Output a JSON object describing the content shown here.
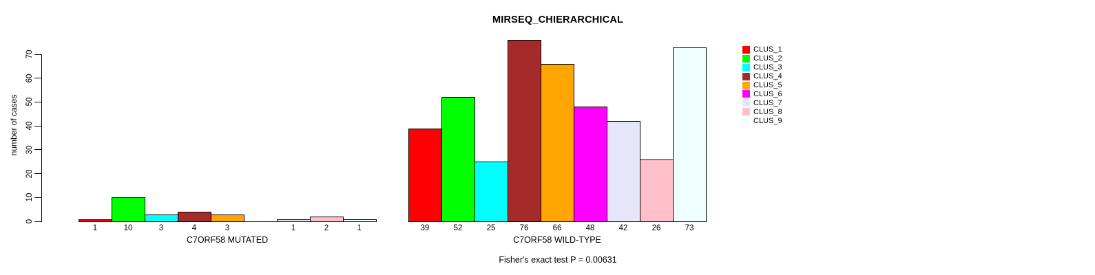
{
  "chart_data": {
    "type": "bar",
    "title": "MIRSEQ_CHIERARCHICAL",
    "ylabel": "number of cases",
    "ylim": [
      0,
      70
    ],
    "yticks": [
      0,
      10,
      20,
      30,
      40,
      50,
      60,
      70
    ],
    "grid": false,
    "legend_position": "top-right",
    "legend": [
      {
        "label": "CLUS_1",
        "color": "#FF0000"
      },
      {
        "label": "CLUS_2",
        "color": "#00FF00"
      },
      {
        "label": "CLUS_3",
        "color": "#00FFFF"
      },
      {
        "label": "CLUS_4",
        "color": "#A52A2A"
      },
      {
        "label": "CLUS_5",
        "color": "#FFA500"
      },
      {
        "label": "CLUS_6",
        "color": "#FF00FF"
      },
      {
        "label": "CLUS_7",
        "color": "#E6E6FA"
      },
      {
        "label": "CLUS_8",
        "color": "#FFC0CB"
      },
      {
        "label": "CLUS_9",
        "color": "#F0FFFF"
      }
    ],
    "groups": [
      {
        "label": "C7ORF58 MUTATED",
        "values": [
          1,
          10,
          3,
          4,
          3,
          0,
          1,
          2,
          1
        ]
      },
      {
        "label": "C7ORF58 WILD-TYPE",
        "values": [
          39,
          52,
          25,
          76,
          66,
          48,
          42,
          26,
          73
        ]
      }
    ],
    "footnote": "Fisher's exact test P = 0.00631",
    "background": "#FFFFFF",
    "bar_border_color": "#000000"
  }
}
